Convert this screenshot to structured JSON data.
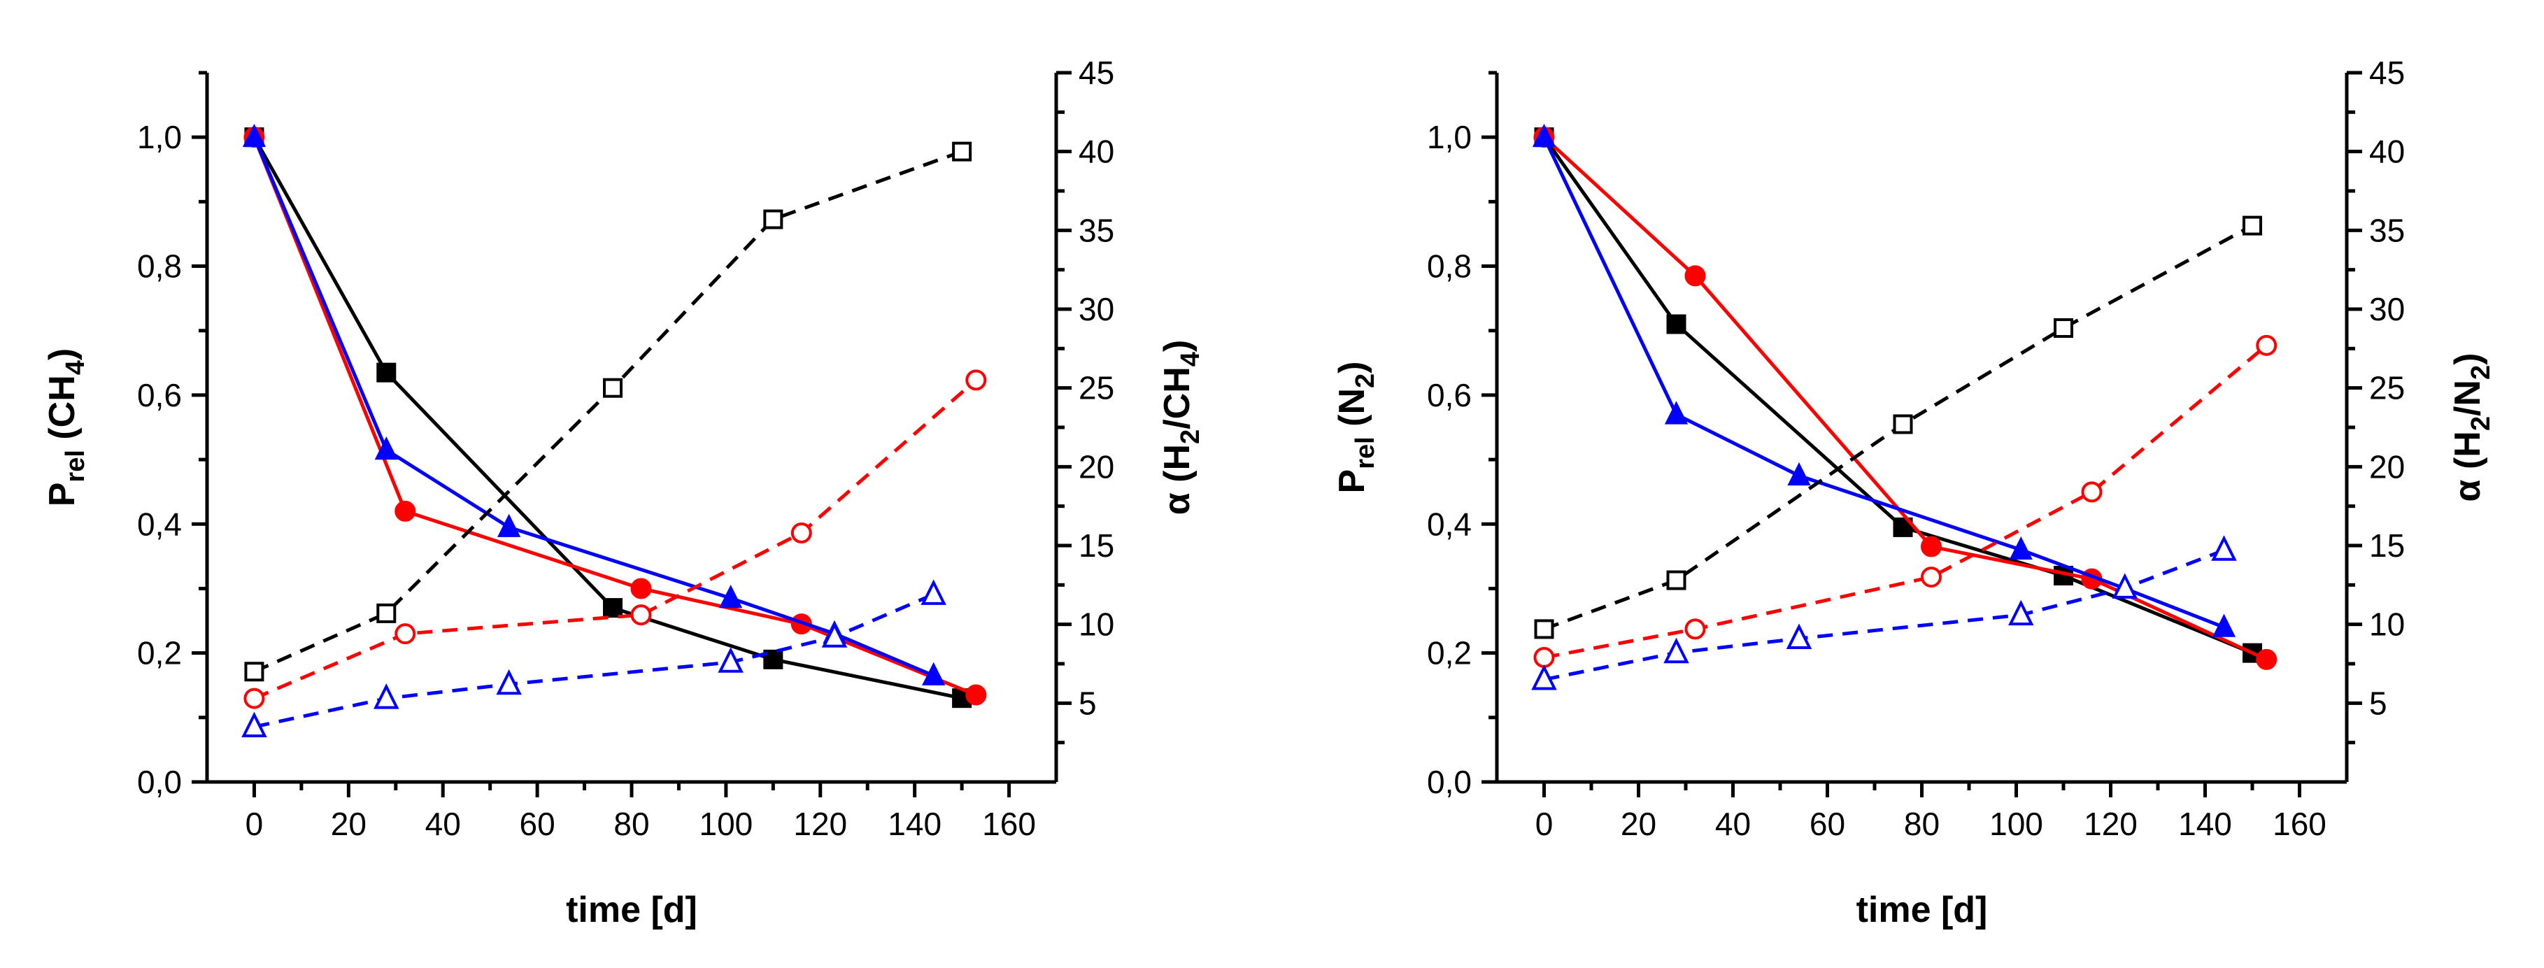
{
  "chart_data": [
    {
      "type": "line",
      "xlabel": "time [d]",
      "ylabel_left": "Prel (CH4)",
      "ylabel_right": "α (H2/CH4)",
      "xlim": [
        -10,
        170
      ],
      "ylim_left": [
        0,
        1.1
      ],
      "ylim_right": [
        0,
        45
      ],
      "xticks": [
        "0",
        "20",
        "40",
        "60",
        "80",
        "100",
        "120",
        "140",
        "160"
      ],
      "yticks_left": [
        "0,0",
        "0,2",
        "0,4",
        "0,6",
        "0,8",
        "1,0"
      ],
      "yticks_right": [
        "5",
        "10",
        "15",
        "20",
        "25",
        "30",
        "35",
        "40",
        "45"
      ],
      "series": [
        {
          "name": "black-prel",
          "axis": "left",
          "color": "#000000",
          "marker": "square-filled",
          "dashed": false,
          "x": [
            0,
            28,
            76,
            110,
            150
          ],
          "y": [
            1.0,
            0.635,
            0.27,
            0.19,
            0.13
          ]
        },
        {
          "name": "red-prel",
          "axis": "left",
          "color": "#ff0000",
          "marker": "circle-filled",
          "dashed": false,
          "x": [
            0,
            32,
            82,
            116,
            153
          ],
          "y": [
            1.0,
            0.42,
            0.3,
            0.245,
            0.135
          ]
        },
        {
          "name": "blue-prel",
          "axis": "left",
          "color": "#0000ff",
          "marker": "triangle-filled",
          "dashed": false,
          "x": [
            0,
            28,
            54,
            101,
            123,
            144
          ],
          "y": [
            1.0,
            0.515,
            0.395,
            0.285,
            0.23,
            0.165
          ]
        },
        {
          "name": "black-alpha",
          "axis": "right",
          "color": "#000000",
          "marker": "square-open",
          "dashed": true,
          "x": [
            0,
            28,
            76,
            110,
            150
          ],
          "y": [
            7.0,
            10.7,
            25.0,
            35.7,
            40.0
          ]
        },
        {
          "name": "red-alpha",
          "axis": "right",
          "color": "#ff0000",
          "marker": "circle-open",
          "dashed": true,
          "x": [
            0,
            32,
            82,
            116,
            153
          ],
          "y": [
            5.3,
            9.4,
            10.6,
            15.8,
            25.5
          ]
        },
        {
          "name": "blue-alpha",
          "axis": "right",
          "color": "#0000ff",
          "marker": "triangle-open",
          "dashed": true,
          "x": [
            0,
            28,
            54,
            101,
            123,
            144
          ],
          "y": [
            3.5,
            5.3,
            6.2,
            7.6,
            9.2,
            11.9
          ]
        }
      ]
    },
    {
      "type": "line",
      "xlabel": "time [d]",
      "ylabel_left": "Prel (N2)",
      "ylabel_right": "α (H2/N2)",
      "xlim": [
        -10,
        170
      ],
      "ylim_left": [
        0,
        1.1
      ],
      "ylim_right": [
        0,
        45
      ],
      "xticks": [
        "0",
        "20",
        "40",
        "60",
        "80",
        "100",
        "120",
        "140",
        "160"
      ],
      "yticks_left": [
        "0,0",
        "0,2",
        "0,4",
        "0,6",
        "0,8",
        "1,0"
      ],
      "yticks_right": [
        "5",
        "10",
        "15",
        "20",
        "25",
        "30",
        "35",
        "40",
        "45"
      ],
      "series": [
        {
          "name": "black-prel",
          "axis": "left",
          "color": "#000000",
          "marker": "square-filled",
          "dashed": false,
          "x": [
            0,
            28,
            76,
            110,
            150
          ],
          "y": [
            1.0,
            0.71,
            0.395,
            0.32,
            0.2
          ]
        },
        {
          "name": "red-prel",
          "axis": "left",
          "color": "#ff0000",
          "marker": "circle-filled",
          "dashed": false,
          "x": [
            0,
            32,
            82,
            116,
            153
          ],
          "y": [
            1.0,
            0.785,
            0.365,
            0.315,
            0.19
          ]
        },
        {
          "name": "blue-prel",
          "axis": "left",
          "color": "#0000ff",
          "marker": "triangle-filled",
          "dashed": false,
          "x": [
            0,
            28,
            54,
            101,
            123,
            144
          ],
          "y": [
            1.0,
            0.57,
            0.475,
            0.36,
            0.3,
            0.24
          ]
        },
        {
          "name": "black-alpha",
          "axis": "right",
          "color": "#000000",
          "marker": "square-open",
          "dashed": true,
          "x": [
            0,
            28,
            76,
            110,
            150
          ],
          "y": [
            9.7,
            12.8,
            22.7,
            28.8,
            35.3
          ]
        },
        {
          "name": "red-alpha",
          "axis": "right",
          "color": "#ff0000",
          "marker": "circle-open",
          "dashed": true,
          "x": [
            0,
            32,
            82,
            116,
            153
          ],
          "y": [
            7.9,
            9.7,
            13.0,
            18.4,
            27.7
          ]
        },
        {
          "name": "blue-alpha",
          "axis": "right",
          "color": "#0000ff",
          "marker": "triangle-open",
          "dashed": true,
          "x": [
            0,
            28,
            54,
            101,
            123,
            144
          ],
          "y": [
            6.5,
            8.2,
            9.1,
            10.6,
            12.3,
            14.7
          ]
        }
      ]
    }
  ]
}
